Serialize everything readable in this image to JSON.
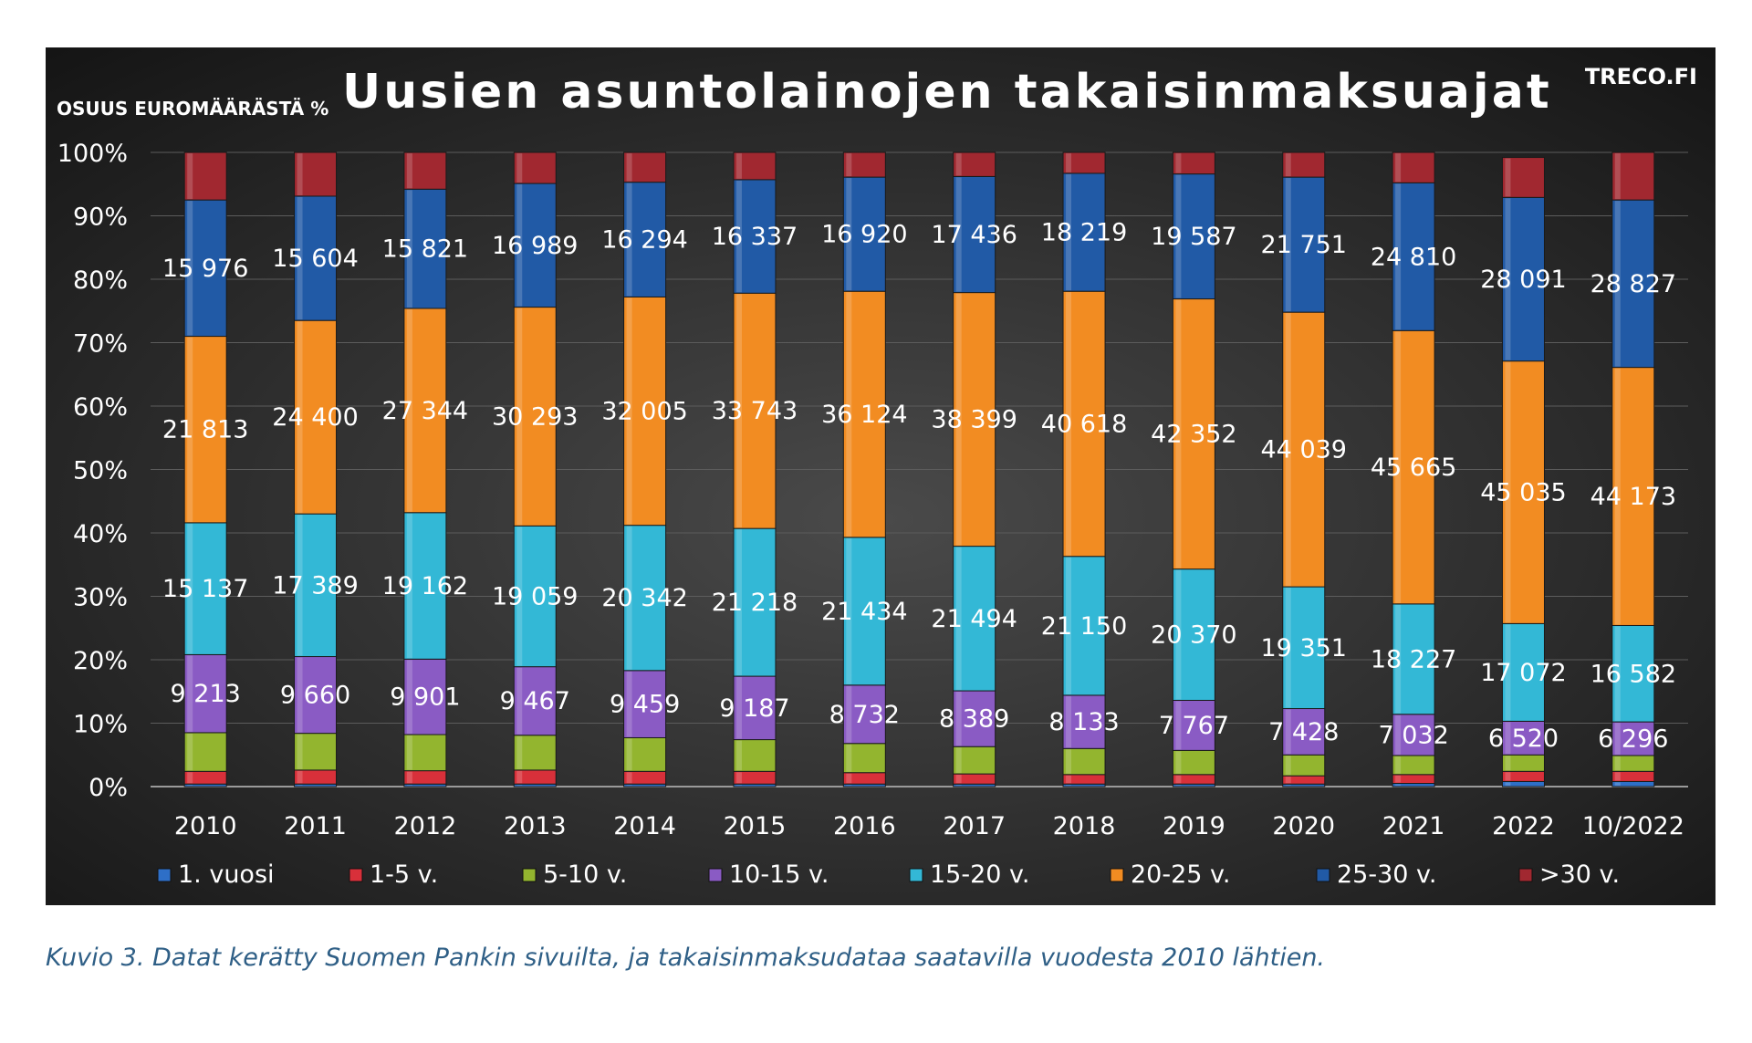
{
  "caption": "Kuvio 3. Datat kerätty Suomen Pankin sivuilta, ja takaisinmaksudataa saatavilla vuodesta 2010 lähtien.",
  "chart_data": {
    "type": "bar",
    "stacked": true,
    "normalized_percent": true,
    "title": "Uusien asuntolainojen takaisinmaksuajat",
    "ylabel": "OSUUS EUROMÄÄRÄSTÄ %",
    "source_tag": "TRECO.FI",
    "ylim": [
      0,
      100
    ],
    "y_ticks": [
      "0%",
      "10%",
      "20%",
      "30%",
      "40%",
      "50%",
      "60%",
      "70%",
      "80%",
      "90%",
      "100%"
    ],
    "grid": true,
    "legend_position": "bottom",
    "categories": [
      "2010",
      "2011",
      "2012",
      "2013",
      "2014",
      "2015",
      "2016",
      "2017",
      "2018",
      "2019",
      "2020",
      "2021",
      "2022",
      "10/2022"
    ],
    "series": [
      {
        "name": "1. vuosi",
        "color": "#2e6fc7",
        "labeled": false,
        "values": [
          0.4,
          0.4,
          0.4,
          0.4,
          0.4,
          0.4,
          0.4,
          0.4,
          0.4,
          0.4,
          0.4,
          0.5,
          0.8,
          0.8
        ]
      },
      {
        "name": "1-5 v.",
        "color": "#d8303a",
        "labeled": false,
        "values": [
          2.0,
          2.2,
          2.1,
          2.2,
          2.0,
          2.0,
          1.8,
          1.6,
          1.5,
          1.5,
          1.3,
          1.4,
          1.6,
          1.6
        ]
      },
      {
        "name": "5-10 v.",
        "color": "#93b52f",
        "labeled": false,
        "values": [
          6.1,
          5.8,
          5.7,
          5.5,
          5.3,
          5.0,
          4.6,
          4.3,
          4.1,
          3.8,
          3.3,
          3.0,
          2.6,
          2.5
        ]
      },
      {
        "name": "10-15 v.",
        "color": "#8a5bc4",
        "labeled": true,
        "values": [
          12.3,
          12.1,
          11.9,
          10.8,
          10.6,
          10.0,
          9.2,
          8.8,
          8.4,
          7.9,
          7.3,
          6.5,
          5.3,
          5.3
        ],
        "labels": [
          "9 213",
          "9 660",
          "9 901",
          "9 467",
          "9 459",
          "9 187",
          "8 732",
          "8 389",
          "8 133",
          "7 767",
          "7 428",
          "7 032",
          "6 520",
          "6 296"
        ]
      },
      {
        "name": "15-20 v.",
        "color": "#33b8d6",
        "labeled": true,
        "values": [
          20.8,
          22.5,
          23.1,
          22.2,
          22.9,
          23.3,
          23.3,
          22.8,
          21.9,
          20.7,
          19.2,
          17.4,
          15.4,
          15.2
        ],
        "labels": [
          "15 137",
          "17 389",
          "19 162",
          "19 059",
          "20 342",
          "21 218",
          "21 434",
          "21 494",
          "21 150",
          "20 370",
          "19 351",
          "18 227",
          "17 072",
          "16 582"
        ]
      },
      {
        "name": "20-25 v.",
        "color": "#f28c22",
        "labeled": true,
        "values": [
          29.4,
          30.5,
          32.2,
          34.5,
          36.0,
          37.1,
          38.8,
          40.0,
          41.8,
          42.6,
          43.3,
          43.1,
          41.4,
          40.7
        ],
        "labels": [
          "21 813",
          "24 400",
          "27 344",
          "30 293",
          "32 005",
          "33 743",
          "36 124",
          "38 399",
          "40 618",
          "42 352",
          "44 039",
          "45 665",
          "45 035",
          "44 173"
        ]
      },
      {
        "name": "25-30 v.",
        "color": "#215aa6",
        "labeled": true,
        "values": [
          21.5,
          19.6,
          18.8,
          19.5,
          18.1,
          17.9,
          18.0,
          18.3,
          18.6,
          19.7,
          21.3,
          23.3,
          25.8,
          26.4
        ],
        "labels": [
          "15 976",
          "15 604",
          "15 821",
          "16 989",
          "16 294",
          "16 337",
          "16 920",
          "17 436",
          "18 219",
          "19 587",
          "21 751",
          "24 810",
          "28 091",
          "28 827"
        ]
      },
      {
        "name": ">30 v.",
        "color": "#a12830",
        "labeled": false,
        "values": [
          7.5,
          6.9,
          5.8,
          4.9,
          4.7,
          4.3,
          3.9,
          3.8,
          3.3,
          3.4,
          3.9,
          4.8,
          6.3,
          7.5
        ]
      }
    ]
  }
}
